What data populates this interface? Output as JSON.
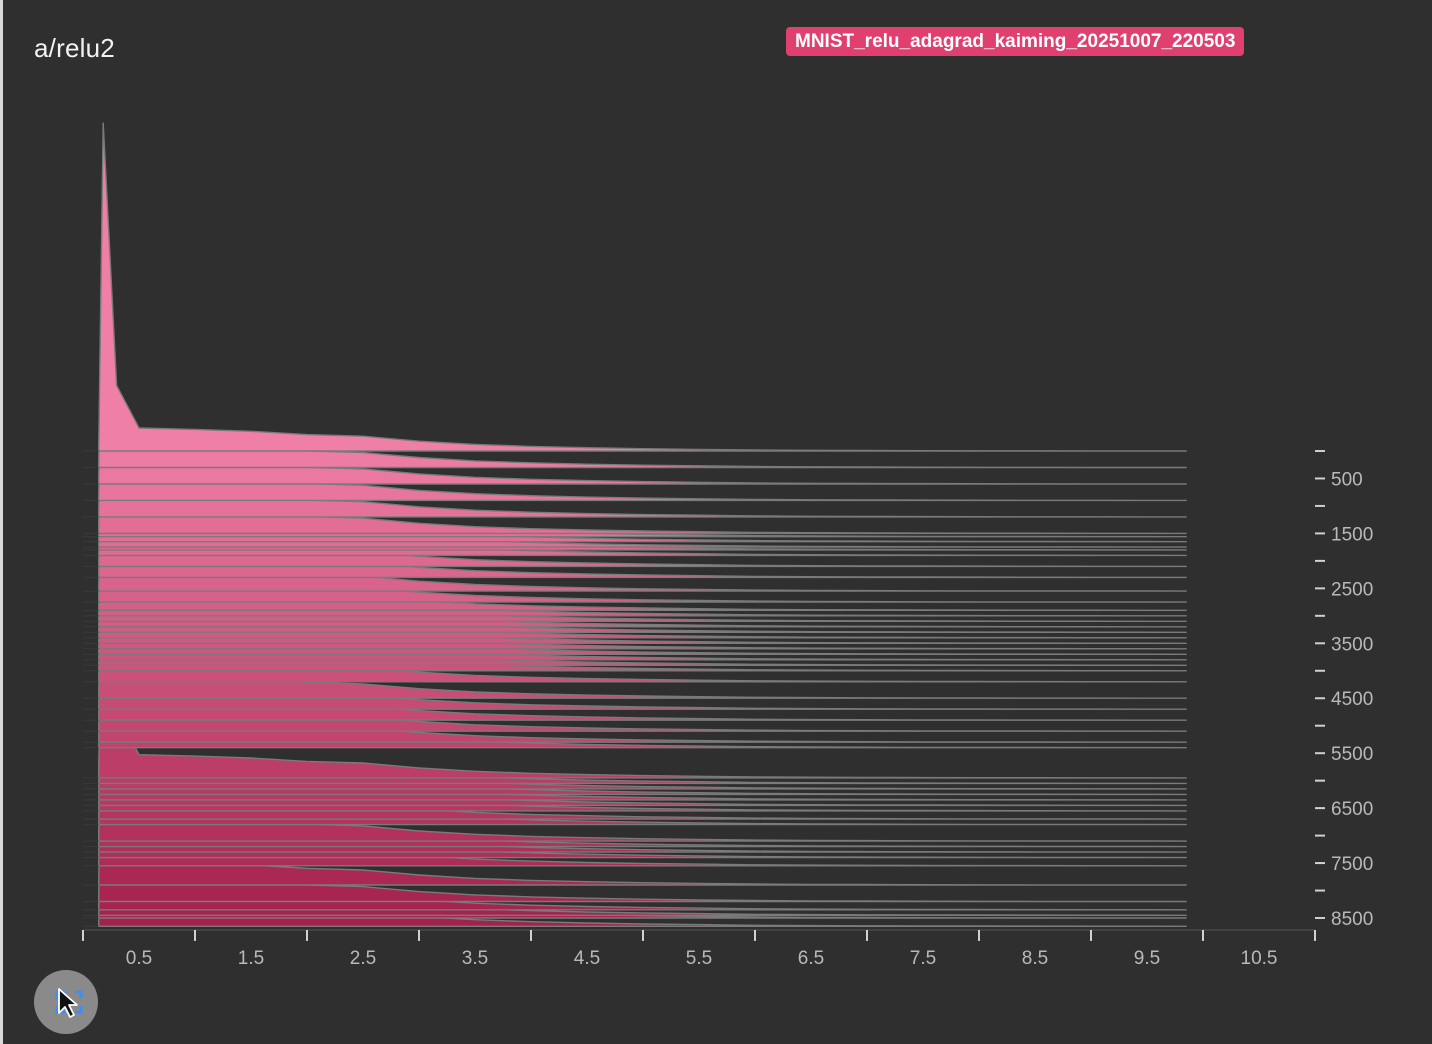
{
  "card": {
    "title": "a/relu2",
    "run_name": "MNIST_relu_adagrad_kaiming_20251007_220503",
    "run_color": "#e0406f"
  },
  "controls": {
    "fit_button_icon": "fit-to-domain-icon"
  },
  "chart_data": {
    "type": "histogram",
    "mode": "offset",
    "x_tick_labels": [
      "0.5",
      "1.5",
      "2.5",
      "3.5",
      "4.5",
      "5.5",
      "6.5",
      "7.5",
      "8.5",
      "9.5",
      "10.5"
    ],
    "x_range": [
      0,
      11
    ],
    "y_tick_labels": [
      "500",
      "1500",
      "2500",
      "3500",
      "4500",
      "5500",
      "6500",
      "7500",
      "8500"
    ],
    "step_range": [
      0,
      8700
    ],
    "colors": {
      "recent": "#ef7fa6",
      "oldest": "#a41f4c",
      "outline": "#7a7a7a"
    },
    "steps": [
      0,
      300,
      600,
      900,
      1200,
      1500,
      1560,
      1650,
      1750,
      1800,
      1900,
      2100,
      2300,
      2550,
      2750,
      2900,
      3000,
      3100,
      3200,
      3300,
      3400,
      3500,
      3600,
      3700,
      3800,
      3900,
      4000,
      4200,
      4500,
      4700,
      4900,
      5100,
      5300,
      5400,
      5950,
      6050,
      6150,
      6250,
      6350,
      6450,
      6550,
      6700,
      6800,
      7100,
      7200,
      7300,
      7400,
      7550,
      7900,
      8200,
      8350,
      8450,
      8500,
      8650
    ],
    "histogram_latest": {
      "x": [
        0.14,
        0.18,
        0.3,
        0.5,
        1.0,
        1.5,
        2.0,
        2.5,
        3.0,
        3.5,
        4.0,
        4.5,
        5.0,
        5.5,
        6.0,
        6.5,
        7.0,
        7.5,
        8.0,
        8.5,
        9.0,
        9.5,
        9.85
      ],
      "y": [
        0.0,
        1.0,
        0.2,
        0.07,
        0.066,
        0.06,
        0.05,
        0.045,
        0.03,
        0.02,
        0.014,
        0.01,
        0.007,
        0.005,
        0.003,
        0.002,
        0.0015,
        0.001,
        0.0007,
        0.0005,
        0.0003,
        0.0002,
        0.0
      ]
    }
  }
}
